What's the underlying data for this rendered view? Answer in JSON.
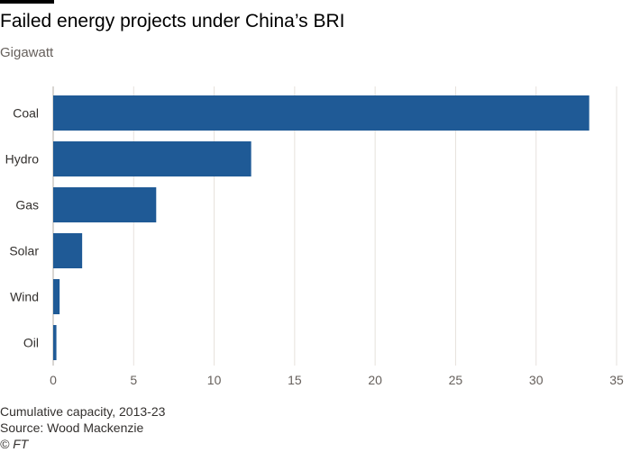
{
  "header": {
    "title": "Failed energy projects under China’s BRI",
    "subtitle": "Gigawatt"
  },
  "footer": {
    "note": "Cumulative capacity, 2013-23",
    "source": "Source: Wood Mackenzie",
    "credit": "© FT"
  },
  "colors": {
    "bar": "#1f5a96",
    "grid": "#e6e1dc",
    "axis": "#b3aca6"
  },
  "chart_data": {
    "type": "bar",
    "orientation": "horizontal",
    "categories": [
      "Coal",
      "Hydro",
      "Gas",
      "Solar",
      "Wind",
      "Oil"
    ],
    "values": [
      33.3,
      12.3,
      6.4,
      1.8,
      0.4,
      0.2
    ],
    "xlim": [
      0,
      35
    ],
    "xticks": [
      0,
      5,
      10,
      15,
      20,
      25,
      30,
      35
    ],
    "grid": true,
    "title": "Failed energy projects under China’s BRI",
    "subtitle": "Gigawatt"
  }
}
